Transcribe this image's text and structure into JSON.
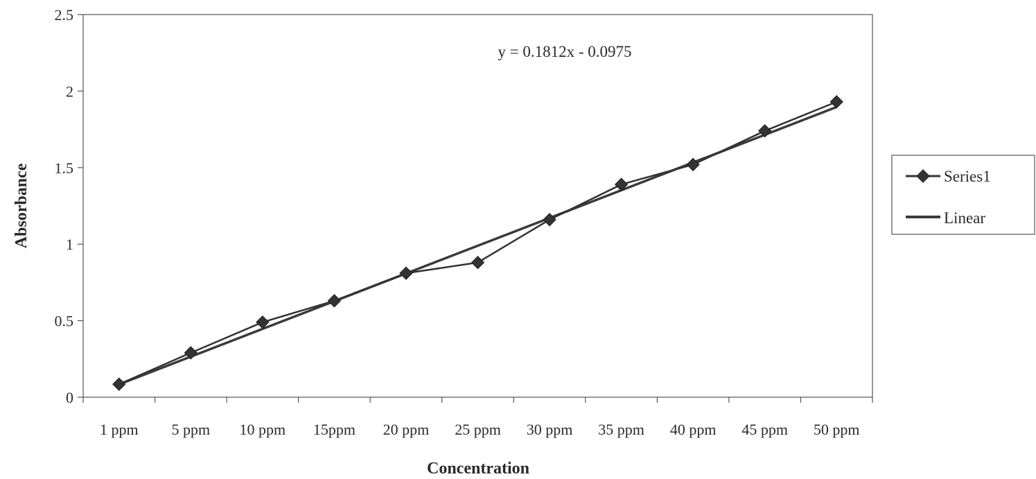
{
  "chart_data": {
    "type": "line",
    "title": "",
    "xlabel": "Concentration",
    "ylabel": "Absorbance",
    "categories": [
      "1 ppm",
      "5 ppm",
      "10 ppm",
      "15ppm",
      "20 ppm",
      "25 ppm",
      "30 ppm",
      "35 ppm",
      "40 ppm",
      "45 ppm",
      "50 ppm"
    ],
    "ylim": [
      0,
      2.5
    ],
    "yticks": [
      "0",
      "0.5",
      "1",
      "1.5",
      "2",
      "2.5"
    ],
    "series": [
      {
        "name": "Series1",
        "values": [
          0.085,
          0.29,
          0.49,
          0.63,
          0.81,
          0.88,
          1.16,
          1.39,
          1.52,
          1.74,
          1.93
        ],
        "color": "#333333",
        "marker": "diamond"
      }
    ],
    "trendline": {
      "name": "Linear",
      "slope": 0.1812,
      "intercept": -0.0975,
      "color": "#3a3a3a"
    },
    "equation": "y = 0.1812x - 0.0975",
    "grid": false,
    "legend_position": "right"
  }
}
